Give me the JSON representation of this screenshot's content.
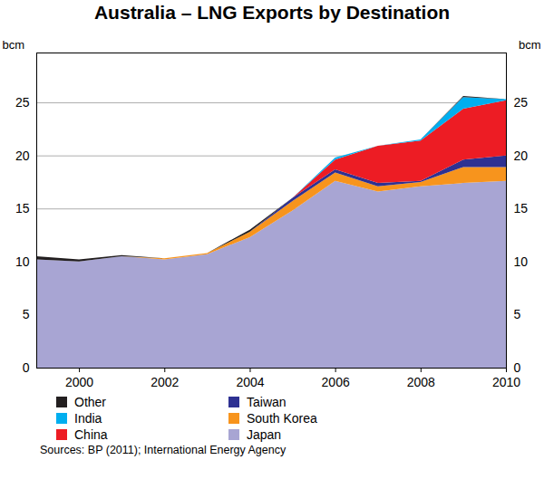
{
  "chart_data": {
    "type": "area",
    "title": "Australia – LNG Exports by Destination",
    "ylabel": "bcm",
    "source": "Sources: BP (2011); International Energy Agency",
    "stacked": true,
    "grid": true,
    "legend": "bottom",
    "x": [
      1999,
      2000,
      2001,
      2002,
      2003,
      2004,
      2005,
      2006,
      2007,
      2008,
      2009,
      2010
    ],
    "xlim": [
      1999,
      2010
    ],
    "xticks": [
      2000,
      2002,
      2004,
      2006,
      2008,
      2010
    ],
    "ylim": [
      0,
      29.7
    ],
    "yticks": [
      0,
      5,
      10,
      15,
      20,
      25
    ],
    "series": [
      {
        "name": "Japan",
        "color": "#a8a5d3",
        "values": [
          10.2,
          10.0,
          10.5,
          10.2,
          10.7,
          12.3,
          14.8,
          17.6,
          16.6,
          17.1,
          17.4,
          17.6
        ]
      },
      {
        "name": "South Korea",
        "color": "#f7941d",
        "values": [
          0,
          0,
          0,
          0.1,
          0.1,
          0.5,
          0.9,
          0.8,
          0.5,
          0.4,
          1.5,
          1.3
        ]
      },
      {
        "name": "Taiwan",
        "color": "#2e3192",
        "values": [
          0,
          0,
          0,
          0,
          0,
          0,
          0.3,
          0.3,
          0.3,
          0.1,
          0.7,
          1.1
        ]
      },
      {
        "name": "China",
        "color": "#ed1c24",
        "values": [
          0,
          0,
          0,
          0,
          0,
          0,
          0,
          0.9,
          3.5,
          3.8,
          4.8,
          5.2
        ]
      },
      {
        "name": "India",
        "color": "#00aeef",
        "values": [
          0,
          0,
          0,
          0,
          0,
          0,
          0,
          0.2,
          0,
          0.1,
          1.1,
          0.1
        ]
      },
      {
        "name": "Other",
        "color": "#231f20",
        "values": [
          0.3,
          0.2,
          0.1,
          0,
          0,
          0.2,
          0,
          0,
          0,
          0,
          0.1,
          0
        ]
      }
    ]
  }
}
